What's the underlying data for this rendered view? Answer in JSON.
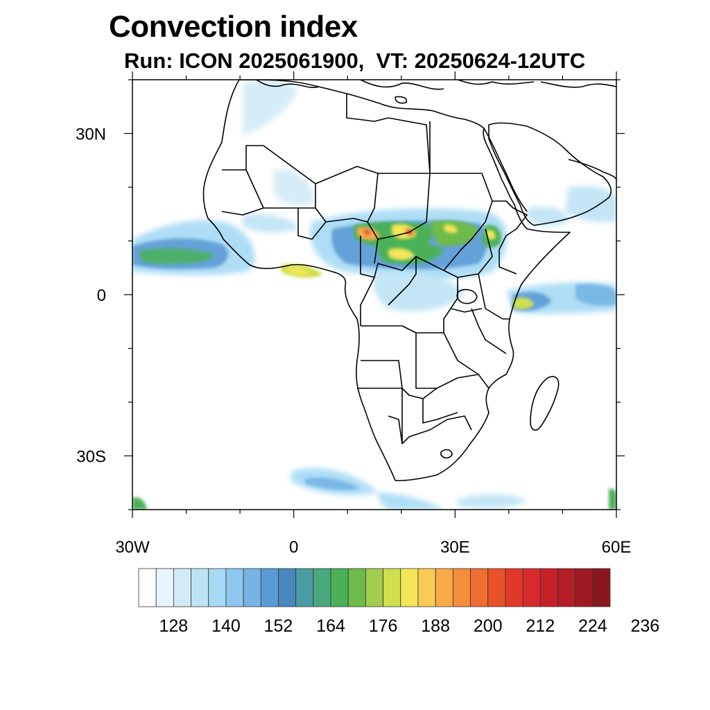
{
  "title": "Convection index",
  "subtitle": "Run: ICON 2025061900,  VT: 20250624-12UTC",
  "map": {
    "lon_range": [
      -30,
      60
    ],
    "lat_range": [
      -40,
      40
    ],
    "lat_ticks": [
      {
        "value": 30,
        "label": "30N"
      },
      {
        "value": 0,
        "label": "0"
      },
      {
        "value": -30,
        "label": "30S"
      }
    ],
    "lon_ticks": [
      {
        "value": -30,
        "label": "30W"
      },
      {
        "value": 0,
        "label": "0"
      },
      {
        "value": 30,
        "label": "30E"
      },
      {
        "value": 60,
        "label": "60E"
      }
    ]
  },
  "colorbar": {
    "colors": [
      "#ffffff",
      "#e8f4fc",
      "#d2ebf8",
      "#bde3f6",
      "#a6daf5",
      "#8ec8ee",
      "#76b4e5",
      "#5b9bd5",
      "#4a87be",
      "#4a9ca2",
      "#4aa87e",
      "#4bb158",
      "#6dbb4a",
      "#a3cd4d",
      "#cfdf4e",
      "#f3e65a",
      "#f9cb55",
      "#f7ab48",
      "#f48d3c",
      "#ef6f30",
      "#e95128",
      "#e0392a",
      "#d82a2d",
      "#c62129",
      "#b21d26",
      "#9e1a22",
      "#8b171e"
    ],
    "labels": [
      "128",
      "140",
      "152",
      "164",
      "176",
      "188",
      "200",
      "212",
      "224",
      "236"
    ]
  }
}
